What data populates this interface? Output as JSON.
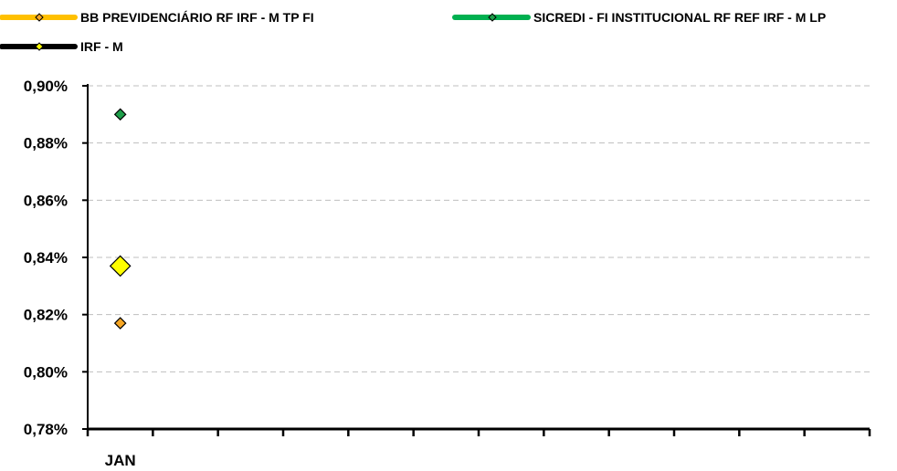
{
  "chart_data": {
    "type": "line",
    "title": "",
    "xlabel": "",
    "ylabel": "",
    "categories": [
      "JAN",
      "",
      "",
      "",
      "",
      "",
      "",
      "",
      "",
      "",
      "",
      ""
    ],
    "y_ticks": [
      "0,78%",
      "0,80%",
      "0,82%",
      "0,84%",
      "0,86%",
      "0,88%",
      "0,90%"
    ],
    "ylim": [
      0.78,
      0.9
    ],
    "y_unit": "%",
    "grid": true,
    "legend_position": "top",
    "series": [
      {
        "name": "BB PREVIDENCIÁRIO RF IRF - M TP FI",
        "line_color": "#FFC000",
        "marker_color": "#F6A623",
        "marker": "diamond",
        "values": [
          0.817,
          null,
          null,
          null,
          null,
          null,
          null,
          null,
          null,
          null,
          null,
          null
        ]
      },
      {
        "name": "SICREDI - FI INSTITUCIONAL RF REF IRF - M LP",
        "line_color": "#00B050",
        "marker_color": "#1E9E4A",
        "marker": "diamond",
        "values": [
          0.89,
          null,
          null,
          null,
          null,
          null,
          null,
          null,
          null,
          null,
          null,
          null
        ]
      },
      {
        "name": "IRF - M",
        "line_color": "#000000",
        "marker_color": "#FFFF00",
        "marker": "diamond-large",
        "values": [
          0.837,
          null,
          null,
          null,
          null,
          null,
          null,
          null,
          null,
          null,
          null,
          null
        ]
      }
    ]
  }
}
